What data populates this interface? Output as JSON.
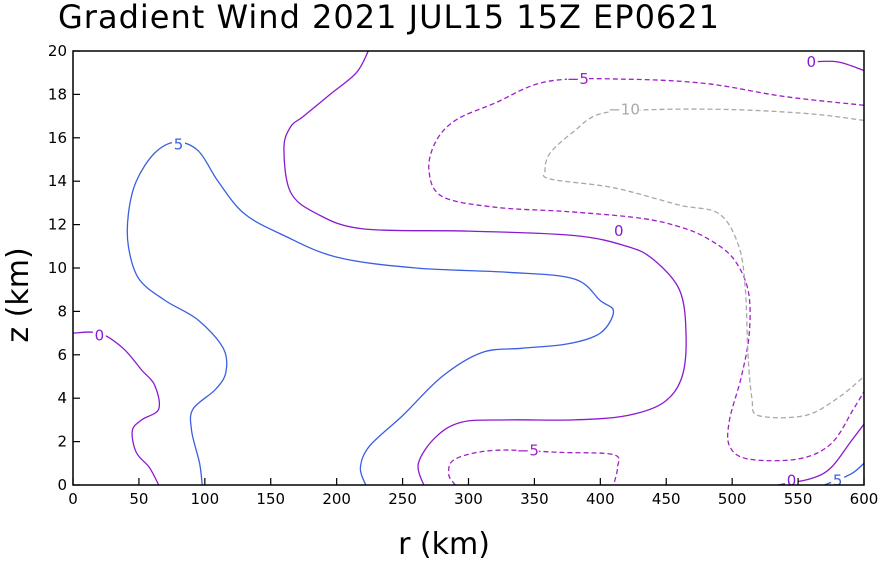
{
  "chart_data": {
    "type": "contour",
    "title": "Gradient Wind 2021 JUL15 15Z  EP0621",
    "xlabel": "r (km)",
    "ylabel": "z (km)",
    "xlim": [
      0,
      600
    ],
    "ylim": [
      0,
      20
    ],
    "xticks": [
      0,
      50,
      100,
      150,
      200,
      250,
      300,
      350,
      400,
      450,
      500,
      550,
      600
    ],
    "yticks": [
      0,
      2,
      4,
      6,
      8,
      10,
      12,
      14,
      16,
      18,
      20
    ],
    "grid": false,
    "colors": {
      "level_5": "#3a5fe0",
      "level_0": "#8a1ad0",
      "level_neg5": "#a020c8",
      "level_neg10": "#a8a8a8"
    },
    "contours": [
      {
        "level": 5,
        "label": "5",
        "color": "#3a5fe0",
        "dashed": false,
        "label_at": [
          80,
          15.7
        ],
        "points": [
          [
            98,
            0
          ],
          [
            96,
            1
          ],
          [
            90,
            2.5
          ],
          [
            91,
            3.5
          ],
          [
            108,
            4.4
          ],
          [
            116,
            5.2
          ],
          [
            114,
            6.3
          ],
          [
            95,
            7.6
          ],
          [
            70,
            8.5
          ],
          [
            50,
            9.5
          ],
          [
            42,
            11
          ],
          [
            42,
            12.5
          ],
          [
            48,
            14
          ],
          [
            62,
            15.3
          ],
          [
            78,
            15.8
          ],
          [
            95,
            15.4
          ],
          [
            110,
            14
          ],
          [
            130,
            12.5
          ],
          [
            160,
            11.5
          ],
          [
            200,
            10.5
          ],
          [
            260,
            10
          ],
          [
            330,
            9.8
          ],
          [
            380,
            9.5
          ],
          [
            400,
            8.5
          ],
          [
            410,
            8
          ],
          [
            400,
            7
          ],
          [
            375,
            6.5
          ],
          [
            340,
            6.3
          ],
          [
            310,
            6.1
          ],
          [
            280,
            5
          ],
          [
            250,
            3.2
          ],
          [
            225,
            1.8
          ],
          [
            218,
            0.8
          ],
          [
            222,
            0
          ]
        ]
      },
      {
        "level": 5,
        "label": "5",
        "color": "#3a5fe0",
        "dashed": false,
        "label_at": [
          580,
          0.2
        ],
        "points": [
          [
            570,
            0
          ],
          [
            590,
            0.5
          ],
          [
            600,
            1
          ]
        ]
      },
      {
        "level": 0,
        "label": "0",
        "color": "#8a1ad0",
        "dashed": false,
        "label_at": [
          20,
          6.9
        ],
        "points": [
          [
            0,
            7
          ],
          [
            20,
            7
          ],
          [
            38,
            6.3
          ],
          [
            52,
            5.3
          ],
          [
            62,
            4.6
          ],
          [
            65,
            3.5
          ],
          [
            52,
            3
          ],
          [
            45,
            2.5
          ],
          [
            48,
            1.5
          ],
          [
            58,
            0.8
          ],
          [
            65,
            0
          ]
        ]
      },
      {
        "level": 0,
        "label": "0",
        "color": "#8a1ad0",
        "dashed": false,
        "label_at": [
          414,
          11.7
        ],
        "points": [
          [
            224,
            20
          ],
          [
            215,
            19
          ],
          [
            195,
            18
          ],
          [
            175,
            17
          ],
          [
            165,
            16.5
          ],
          [
            160,
            15.5
          ],
          [
            165,
            13.5
          ],
          [
            185,
            12.5
          ],
          [
            220,
            11.8
          ],
          [
            300,
            11.7
          ],
          [
            380,
            11.5
          ],
          [
            420,
            11
          ],
          [
            440,
            10.4
          ],
          [
            460,
            9
          ],
          [
            465,
            7
          ],
          [
            462,
            5
          ],
          [
            448,
            3.8
          ],
          [
            420,
            3.2
          ],
          [
            380,
            3
          ],
          [
            330,
            3
          ],
          [
            295,
            2.9
          ],
          [
            275,
            2.2
          ],
          [
            262,
            1
          ],
          [
            266,
            0
          ]
        ]
      },
      {
        "level": 0,
        "label": "0",
        "color": "#8a1ad0",
        "dashed": false,
        "label_at": [
          560,
          19.5
        ],
        "points": [
          [
            560,
            19.5
          ],
          [
            580,
            19.5
          ],
          [
            600,
            19.1
          ]
        ]
      },
      {
        "level": 0,
        "label": "0",
        "color": "#8a1ad0",
        "dashed": false,
        "label_at": [
          545,
          0.2
        ],
        "points": [
          [
            535,
            0
          ],
          [
            560,
            0.3
          ],
          [
            575,
            0.8
          ],
          [
            590,
            2
          ],
          [
            600,
            2.8
          ]
        ]
      },
      {
        "level": -5,
        "label": "−5",
        "color": "#a020c8",
        "dashed": true,
        "label_at": [
          383,
          18.7
        ],
        "points": [
          [
            600,
            17.5
          ],
          [
            540,
            17.9
          ],
          [
            480,
            18.5
          ],
          [
            420,
            18.7
          ],
          [
            360,
            18.6
          ],
          [
            320,
            17.6
          ],
          [
            290,
            16.8
          ],
          [
            275,
            15.8
          ],
          [
            270,
            14.5
          ],
          [
            280,
            13.3
          ],
          [
            320,
            12.8
          ],
          [
            375,
            12.6
          ],
          [
            430,
            12.3
          ],
          [
            460,
            11.9
          ],
          [
            480,
            11.4
          ],
          [
            500,
            10.5
          ],
          [
            512,
            9
          ],
          [
            513,
            7
          ],
          [
            507,
            5
          ],
          [
            498,
            3
          ],
          [
            498,
            1.8
          ],
          [
            512,
            1.2
          ],
          [
            550,
            1.2
          ],
          [
            575,
            1.9
          ],
          [
            592,
            3.5
          ],
          [
            600,
            4.3
          ]
        ]
      },
      {
        "level": -5,
        "label": "−5",
        "color": "#a020c8",
        "dashed": true,
        "label_at": [
          345,
          1.6
        ],
        "points": [
          [
            290,
            0
          ],
          [
            285,
            0.5
          ],
          [
            290,
            1.2
          ],
          [
            320,
            1.6
          ],
          [
            370,
            1.5
          ],
          [
            410,
            1.4
          ],
          [
            413,
            0.8
          ],
          [
            410,
            0
          ]
        ]
      },
      {
        "level": -10,
        "label": "−10",
        "color": "#a8a8a8",
        "dashed": true,
        "label_at": [
          418,
          17.3
        ],
        "points": [
          [
            600,
            16.8
          ],
          [
            560,
            17.1
          ],
          [
            500,
            17.3
          ],
          [
            440,
            17.3
          ],
          [
            400,
            17.1
          ],
          [
            380,
            16.3
          ],
          [
            362,
            15.3
          ],
          [
            358,
            14.5
          ],
          [
            362,
            14.1
          ],
          [
            410,
            13.7
          ],
          [
            460,
            12.9
          ],
          [
            490,
            12.5
          ],
          [
            505,
            11
          ],
          [
            510,
            9
          ],
          [
            512,
            6
          ],
          [
            515,
            4
          ],
          [
            520,
            3.2
          ],
          [
            555,
            3.2
          ],
          [
            580,
            4
          ],
          [
            600,
            5
          ]
        ]
      }
    ]
  }
}
